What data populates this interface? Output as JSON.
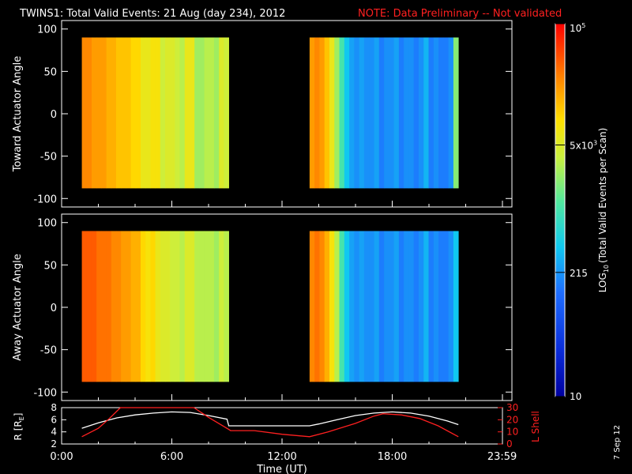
{
  "header": {
    "title": "TWINS1: Total Valid Events: 21 Aug (day 234), 2012",
    "note": "NOTE: Data Preliminary -- Not validated",
    "note_color": "#ff2020"
  },
  "footer": {
    "date_stamp": "7 Sep 12"
  },
  "chart_data": [
    {
      "type": "heatmap",
      "name": "toward",
      "ylabel": "Toward Actuator Angle",
      "ylim": [
        -110,
        110
      ],
      "yticks": [
        -100,
        -50,
        0,
        50,
        100
      ],
      "ytick_labels": [
        "-100",
        "-50",
        "0",
        "50",
        "100"
      ],
      "xlim_hours": [
        0,
        24
      ],
      "data_y_range": [
        -88,
        90
      ],
      "segments": [
        {
          "start_hour": 1.1,
          "end_hour": 9.1,
          "values": [
            4.4,
            4.4,
            4.3,
            4.3,
            4.3,
            4.2,
            4.2,
            4.1,
            4.1,
            4.1,
            4.0,
            4.0,
            3.8,
            3.8,
            3.9,
            3.9,
            3.6,
            3.7,
            3.7,
            3.6,
            3.5,
            3.8,
            3.8,
            3.4,
            3.4,
            3.5,
            3.5,
            3.4,
            3.7,
            3.6
          ]
        },
        {
          "start_hour": 13.5,
          "end_hour": 21.6,
          "values": [
            4.3,
            4.4,
            4.3,
            4.1,
            3.8,
            3.4,
            3.0,
            2.6,
            2.4,
            2.3,
            2.4,
            2.3,
            2.3,
            2.4,
            2.2,
            2.3,
            2.3,
            2.4,
            2.2,
            2.3,
            2.3,
            2.2,
            2.3,
            2.5,
            2.2,
            2.3,
            2.2,
            2.2,
            2.3,
            3.3
          ]
        }
      ]
    },
    {
      "type": "heatmap",
      "name": "away",
      "ylabel": "Away Actuator Angle",
      "ylim": [
        -110,
        110
      ],
      "yticks": [
        -100,
        -50,
        0,
        50,
        100
      ],
      "ytick_labels": [
        "-100",
        "-50",
        "0",
        "50",
        "100"
      ],
      "xlim_hours": [
        0,
        24
      ],
      "data_y_range": [
        -88,
        90
      ],
      "segments": [
        {
          "start_hour": 1.1,
          "end_hour": 9.1,
          "values": [
            4.6,
            4.6,
            4.6,
            4.5,
            4.5,
            4.5,
            4.4,
            4.4,
            4.3,
            4.3,
            4.2,
            4.2,
            4.0,
            3.9,
            4.0,
            3.8,
            3.7,
            3.7,
            3.6,
            3.6,
            3.5,
            3.7,
            3.7,
            3.5,
            3.5,
            3.5,
            3.5,
            3.4,
            3.6,
            3.5
          ]
        },
        {
          "start_hour": 13.5,
          "end_hour": 21.6,
          "values": [
            4.4,
            4.5,
            4.4,
            4.2,
            3.9,
            3.5,
            3.0,
            2.6,
            2.4,
            2.3,
            2.4,
            2.3,
            2.3,
            2.4,
            2.2,
            2.3,
            2.3,
            2.4,
            2.2,
            2.3,
            2.3,
            2.2,
            2.3,
            2.5,
            2.2,
            2.3,
            2.2,
            2.2,
            2.3,
            2.6
          ]
        }
      ]
    },
    {
      "type": "line",
      "name": "orbit",
      "ylabel_left": "R [R",
      "ylabel_left_sub": "E",
      "ylabel_left_close": "]",
      "ylabel_right": "L Shell",
      "ylim_left": [
        2,
        8
      ],
      "ylim_right": [
        0,
        30
      ],
      "yticks_left": [
        2,
        4,
        6,
        8
      ],
      "ytick_labels_left": [
        "2",
        "4",
        "6",
        "8"
      ],
      "yticks_right": [
        0,
        10,
        20,
        30
      ],
      "ytick_labels_right": [
        "0",
        "10",
        "20",
        "30"
      ],
      "xlabel": "Time (UT)",
      "xticks_hours": [
        0,
        6,
        12,
        18,
        23.983
      ],
      "xtick_labels": [
        "0:00",
        "6:00",
        "12:00",
        "18:00",
        "23:59"
      ],
      "series": [
        {
          "color": "#ffffff",
          "axis": "left",
          "points": [
            [
              1.1,
              4.6
            ],
            [
              2,
              5.5
            ],
            [
              3,
              6.3
            ],
            [
              4,
              6.8
            ],
            [
              5,
              7.1
            ],
            [
              6,
              7.3
            ],
            [
              7,
              7.2
            ],
            [
              8,
              6.7
            ],
            [
              9,
              6.1
            ],
            [
              9.1,
              5.0
            ],
            [
              13.5,
              5.0
            ],
            [
              14,
              5.3
            ],
            [
              15,
              6.0
            ],
            [
              16,
              6.7
            ],
            [
              17,
              7.1
            ],
            [
              18,
              7.3
            ],
            [
              19,
              7.1
            ],
            [
              20,
              6.6
            ],
            [
              21,
              5.8
            ],
            [
              21.6,
              5.2
            ]
          ]
        },
        {
          "color": "#ff2020",
          "axis": "right",
          "points": [
            [
              1.1,
              6
            ],
            [
              2,
              13
            ],
            [
              2.6,
              21
            ],
            [
              3.2,
              30
            ],
            [
              3.3,
              31
            ],
            [
              7.0,
              31
            ],
            [
              7.2,
              30
            ],
            [
              8,
              22
            ],
            [
              9.1,
              12
            ],
            [
              9.2,
              11
            ],
            [
              10.5,
              11
            ],
            [
              12,
              8
            ],
            [
              13.5,
              6
            ],
            [
              14.5,
              10
            ],
            [
              16,
              17
            ],
            [
              17,
              23
            ],
            [
              17.5,
              25
            ],
            [
              18.5,
              24
            ],
            [
              19.5,
              21
            ],
            [
              20.5,
              15
            ],
            [
              21.6,
              6
            ]
          ]
        }
      ]
    },
    {
      "type": "heatmap",
      "name": "colorbar",
      "label": "LOG",
      "label_sub": "10",
      "label_rest": "(Total Valid Events per Scan)",
      "value_range": [
        1,
        5
      ],
      "tick_values": [
        1,
        2.332,
        3.699,
        5
      ],
      "tick_labels": [
        "10",
        "215",
        "5x10",
        "10"
      ],
      "tick_label_sup": [
        "",
        "",
        "3",
        "5"
      ]
    }
  ]
}
